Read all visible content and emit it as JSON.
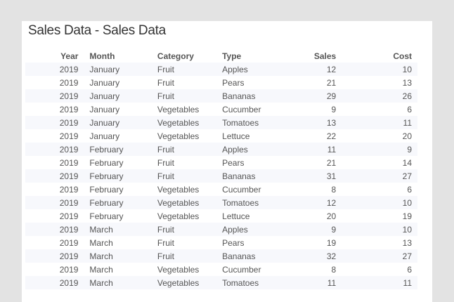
{
  "title": "Sales Data - Sales Data",
  "columns": [
    "Year",
    "Month",
    "Category",
    "Type",
    "Sales",
    "Cost"
  ],
  "rows": [
    [
      "2019",
      "January",
      "Fruit",
      "Apples",
      "12",
      "10"
    ],
    [
      "2019",
      "January",
      "Fruit",
      "Pears",
      "21",
      "13"
    ],
    [
      "2019",
      "January",
      "Fruit",
      "Bananas",
      "29",
      "26"
    ],
    [
      "2019",
      "January",
      "Vegetables",
      "Cucumber",
      "9",
      "6"
    ],
    [
      "2019",
      "January",
      "Vegetables",
      "Tomatoes",
      "13",
      "11"
    ],
    [
      "2019",
      "January",
      "Vegetables",
      "Lettuce",
      "22",
      "20"
    ],
    [
      "2019",
      "February",
      "Fruit",
      "Apples",
      "11",
      "9"
    ],
    [
      "2019",
      "February",
      "Fruit",
      "Pears",
      "21",
      "14"
    ],
    [
      "2019",
      "February",
      "Fruit",
      "Bananas",
      "31",
      "27"
    ],
    [
      "2019",
      "February",
      "Vegetables",
      "Cucumber",
      "8",
      "6"
    ],
    [
      "2019",
      "February",
      "Vegetables",
      "Tomatoes",
      "12",
      "10"
    ],
    [
      "2019",
      "February",
      "Vegetables",
      "Lettuce",
      "20",
      "19"
    ],
    [
      "2019",
      "March",
      "Fruit",
      "Apples",
      "9",
      "10"
    ],
    [
      "2019",
      "March",
      "Fruit",
      "Pears",
      "19",
      "13"
    ],
    [
      "2019",
      "March",
      "Fruit",
      "Bananas",
      "32",
      "27"
    ],
    [
      "2019",
      "March",
      "Vegetables",
      "Cucumber",
      "8",
      "6"
    ],
    [
      "2019",
      "March",
      "Vegetables",
      "Tomatoes",
      "11",
      "11"
    ]
  ]
}
